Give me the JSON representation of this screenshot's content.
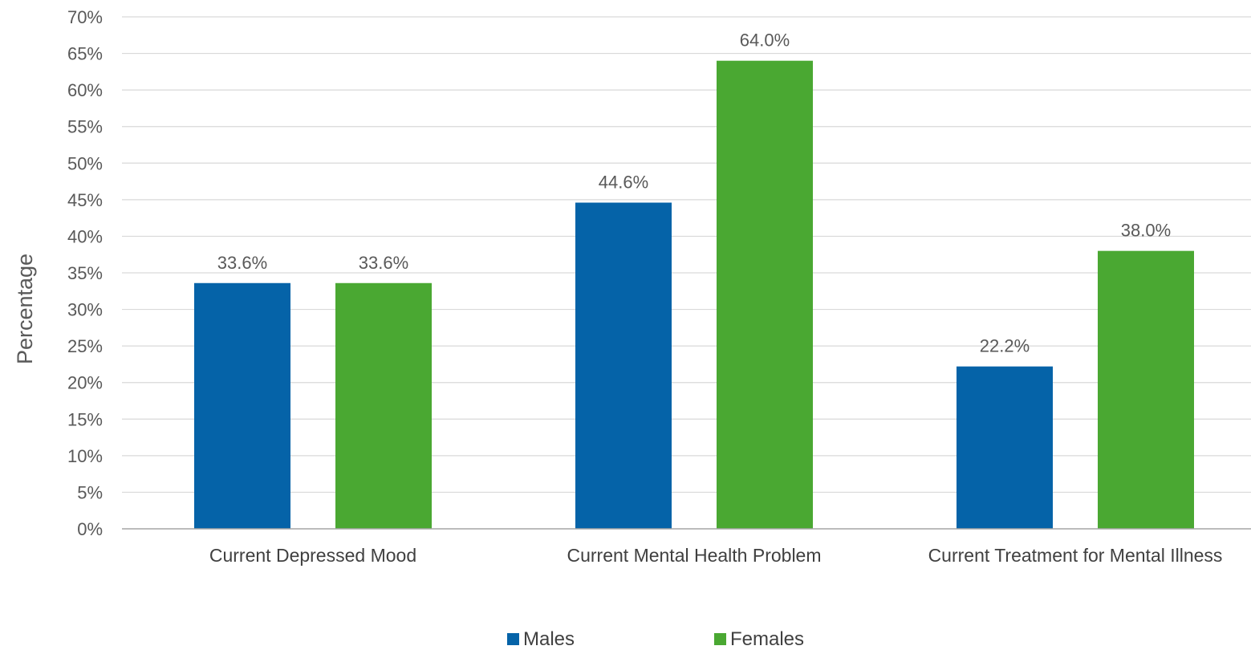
{
  "chart_data": {
    "type": "bar",
    "title": "",
    "xlabel": "",
    "ylabel": "Percentage",
    "ylim": [
      0,
      70
    ],
    "ytick_step": 5,
    "ytick_format": "percent",
    "grid": true,
    "legend_position": "bottom",
    "categories": [
      "Current Depressed Mood",
      "Current Mental Health Problem",
      "Current Treatment for Mental Illness"
    ],
    "series": [
      {
        "name": "Males",
        "color": "#0563a8",
        "values": [
          33.6,
          44.6,
          22.2
        ],
        "labels": [
          "33.6%",
          "44.6%",
          "22.2%"
        ]
      },
      {
        "name": "Females",
        "color": "#4aa832",
        "values": [
          33.6,
          64.0,
          38.0
        ],
        "labels": [
          "33.6%",
          "64.0%",
          "38.0%"
        ]
      }
    ]
  }
}
